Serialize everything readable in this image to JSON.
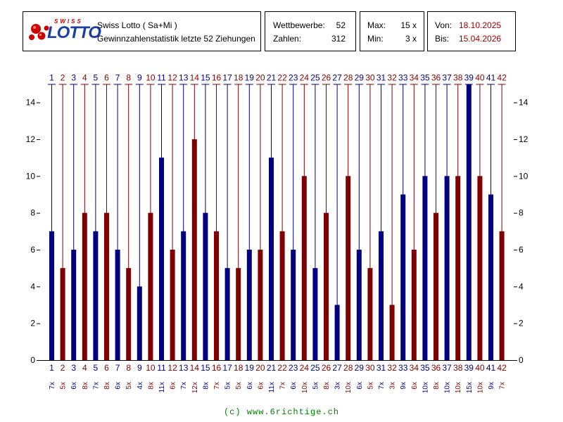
{
  "header": {
    "logo_top": "SWISS",
    "logo_main": "LOTTO",
    "title": "Swiss Lotto ( Sa+Mi )",
    "subtitle": "Gewinnzahlenstatistik letzte 52 Ziehungen",
    "stats": {
      "wettbewerbe_label": "Wettbewerbe:",
      "wettbewerbe_value": "52",
      "zahlen_label": "Zahlen:",
      "zahlen_value": "312"
    },
    "range": {
      "max_label": "Max:",
      "max_value": "15 x",
      "min_label": "Min:",
      "min_value": "3 x"
    },
    "dates": {
      "von_label": "Von:",
      "von_value": "18.10.2025",
      "bis_label": "Bis:",
      "bis_value": "15.04.2026"
    }
  },
  "colors": {
    "blue": "#000080",
    "red": "#800000",
    "logo_red": "#cc0000",
    "logo_blue": "#1a3fa0",
    "footer": "#008000"
  },
  "chart_data": {
    "type": "bar",
    "categories": [
      "1",
      "2",
      "3",
      "4",
      "5",
      "6",
      "7",
      "8",
      "9",
      "10",
      "11",
      "12",
      "13",
      "14",
      "15",
      "16",
      "17",
      "18",
      "19",
      "20",
      "21",
      "22",
      "23",
      "24",
      "25",
      "26",
      "27",
      "28",
      "29",
      "30",
      "31",
      "32",
      "33",
      "34",
      "35",
      "36",
      "37",
      "38",
      "39",
      "40",
      "41",
      "42"
    ],
    "values": [
      7,
      5,
      6,
      8,
      7,
      8,
      6,
      5,
      4,
      8,
      11,
      6,
      7,
      12,
      8,
      7,
      5,
      5,
      6,
      6,
      11,
      7,
      6,
      10,
      5,
      8,
      3,
      10,
      6,
      5,
      7,
      3,
      9,
      6,
      10,
      8,
      10,
      10,
      15,
      10,
      9,
      7
    ],
    "count_labels": [
      "7x",
      "5x",
      "6x",
      "8x",
      "7x",
      "8x",
      "6x",
      "5x",
      "4x",
      "8x",
      "11x",
      "6x",
      "7x",
      "12x",
      "8x",
      "7x",
      "5x",
      "5x",
      "6x",
      "6x",
      "11x",
      "7x",
      "6x",
      "10x",
      "5x",
      "8x",
      "3x",
      "10x",
      "6x",
      "5x",
      "7x",
      "3x",
      "9x",
      "6x",
      "10x",
      "8x",
      "10x",
      "10x",
      "15x",
      "10x",
      "9x",
      "7x"
    ],
    "yticks": [
      0,
      2,
      4,
      6,
      8,
      10,
      12,
      14
    ],
    "ylim": [
      0,
      15
    ],
    "xlabel": "",
    "ylabel": "",
    "title": "",
    "grid": false
  },
  "footer": {
    "text": "(c) www.6richtige.ch"
  }
}
